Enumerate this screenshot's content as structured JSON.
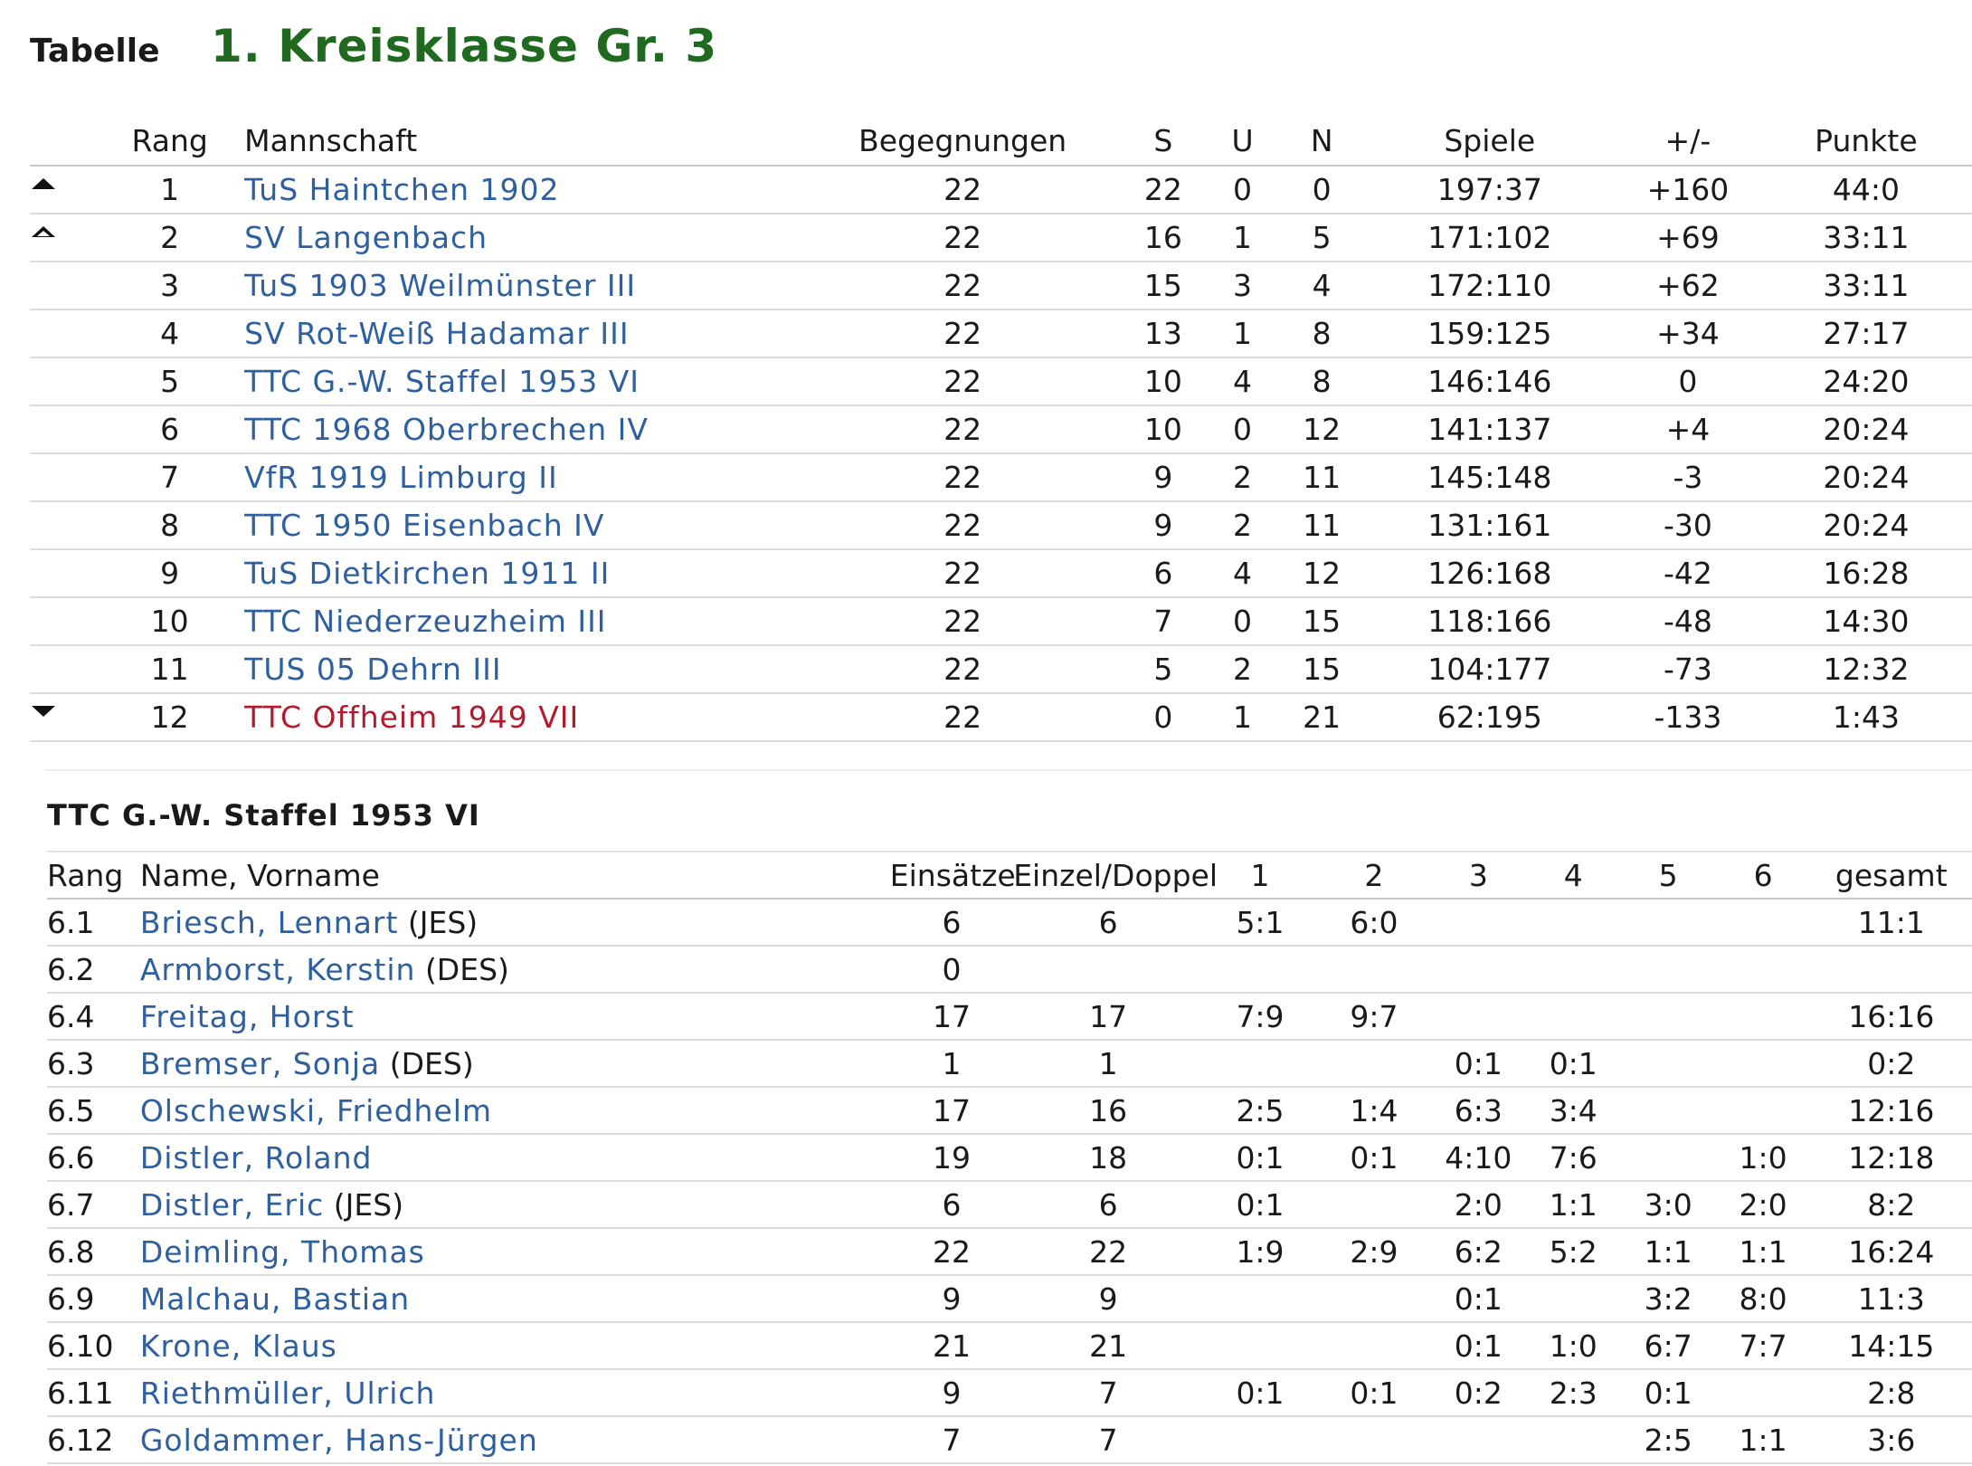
{
  "header": {
    "label": "Tabelle",
    "league": "1. Kreisklasse Gr. 3"
  },
  "standings": {
    "columns": [
      "Rang",
      "Mannschaft",
      "Begegnungen",
      "S",
      "U",
      "N",
      "Spiele",
      "+/-",
      "Punkte"
    ],
    "rows": [
      {
        "marker": "up-filled",
        "rang": "1",
        "team": "TuS Haintchen 1902",
        "beg": "22",
        "s": "22",
        "u": "0",
        "n": "0",
        "spiele": "197:37",
        "diff": "+160",
        "punkte": "44:0",
        "status": "normal"
      },
      {
        "marker": "up-outline",
        "rang": "2",
        "team": "SV Langenbach",
        "beg": "22",
        "s": "16",
        "u": "1",
        "n": "5",
        "spiele": "171:102",
        "diff": "+69",
        "punkte": "33:11",
        "status": "normal"
      },
      {
        "marker": "",
        "rang": "3",
        "team": "TuS 1903 Weilmünster III",
        "beg": "22",
        "s": "15",
        "u": "3",
        "n": "4",
        "spiele": "172:110",
        "diff": "+62",
        "punkte": "33:11",
        "status": "normal"
      },
      {
        "marker": "",
        "rang": "4",
        "team": "SV Rot-Weiß Hadamar III",
        "beg": "22",
        "s": "13",
        "u": "1",
        "n": "8",
        "spiele": "159:125",
        "diff": "+34",
        "punkte": "27:17",
        "status": "normal"
      },
      {
        "marker": "",
        "rang": "5",
        "team": "TTC G.-W. Staffel 1953 VI",
        "beg": "22",
        "s": "10",
        "u": "4",
        "n": "8",
        "spiele": "146:146",
        "diff": "0",
        "punkte": "24:20",
        "status": "normal"
      },
      {
        "marker": "",
        "rang": "6",
        "team": "TTC 1968 Oberbrechen IV",
        "beg": "22",
        "s": "10",
        "u": "0",
        "n": "12",
        "spiele": "141:137",
        "diff": "+4",
        "punkte": "20:24",
        "status": "normal"
      },
      {
        "marker": "",
        "rang": "7",
        "team": "VfR 1919 Limburg II",
        "beg": "22",
        "s": "9",
        "u": "2",
        "n": "11",
        "spiele": "145:148",
        "diff": "-3",
        "punkte": "20:24",
        "status": "normal"
      },
      {
        "marker": "",
        "rang": "8",
        "team": "TTC 1950 Eisenbach IV",
        "beg": "22",
        "s": "9",
        "u": "2",
        "n": "11",
        "spiele": "131:161",
        "diff": "-30",
        "punkte": "20:24",
        "status": "normal"
      },
      {
        "marker": "",
        "rang": "9",
        "team": "TuS Dietkirchen 1911 II",
        "beg": "22",
        "s": "6",
        "u": "4",
        "n": "12",
        "spiele": "126:168",
        "diff": "-42",
        "punkte": "16:28",
        "status": "normal"
      },
      {
        "marker": "",
        "rang": "10",
        "team": "TTC Niederzeuzheim III",
        "beg": "22",
        "s": "7",
        "u": "0",
        "n": "15",
        "spiele": "118:166",
        "diff": "-48",
        "punkte": "14:30",
        "status": "normal"
      },
      {
        "marker": "",
        "rang": "11",
        "team": "TUS 05 Dehrn III",
        "beg": "22",
        "s": "5",
        "u": "2",
        "n": "15",
        "spiele": "104:177",
        "diff": "-73",
        "punkte": "12:32",
        "status": "normal"
      },
      {
        "marker": "down-filled",
        "rang": "12",
        "team": "TTC Offheim 1949 VII",
        "beg": "22",
        "s": "0",
        "u": "1",
        "n": "21",
        "spiele": "62:195",
        "diff": "-133",
        "punkte": "1:43",
        "status": "relegation"
      }
    ]
  },
  "team_section": {
    "title": "TTC G.-W. Staffel 1953 VI",
    "columns": [
      "Rang",
      "Name, Vorname",
      "Einsätze",
      "Einzel/Doppel",
      "1",
      "2",
      "3",
      "4",
      "5",
      "6",
      "gesamt"
    ],
    "players": [
      {
        "rang": "6.1",
        "name": "Briesch, Lennart",
        "tag": "(JES)",
        "eins": "6",
        "ed": "6",
        "p1": "5:1",
        "p2": "6:0",
        "p3": "",
        "p4": "",
        "p5": "",
        "p6": "",
        "ges": "11:1"
      },
      {
        "rang": "6.2",
        "name": "Armborst, Kerstin",
        "tag": "(DES)",
        "eins": "0",
        "ed": "",
        "p1": "",
        "p2": "",
        "p3": "",
        "p4": "",
        "p5": "",
        "p6": "",
        "ges": ""
      },
      {
        "rang": "6.4",
        "name": "Freitag, Horst",
        "tag": "",
        "eins": "17",
        "ed": "17",
        "p1": "7:9",
        "p2": "9:7",
        "p3": "",
        "p4": "",
        "p5": "",
        "p6": "",
        "ges": "16:16"
      },
      {
        "rang": "6.3",
        "name": "Bremser, Sonja",
        "tag": "(DES)",
        "eins": "1",
        "ed": "1",
        "p1": "",
        "p2": "",
        "p3": "0:1",
        "p4": "0:1",
        "p5": "",
        "p6": "",
        "ges": "0:2"
      },
      {
        "rang": "6.5",
        "name": "Olschewski, Friedhelm",
        "tag": "",
        "eins": "17",
        "ed": "16",
        "p1": "2:5",
        "p2": "1:4",
        "p3": "6:3",
        "p4": "3:4",
        "p5": "",
        "p6": "",
        "ges": "12:16"
      },
      {
        "rang": "6.6",
        "name": "Distler, Roland",
        "tag": "",
        "eins": "19",
        "ed": "18",
        "p1": "0:1",
        "p2": "0:1",
        "p3": "4:10",
        "p4": "7:6",
        "p5": "",
        "p6": "1:0",
        "ges": "12:18"
      },
      {
        "rang": "6.7",
        "name": "Distler, Eric",
        "tag": "(JES)",
        "eins": "6",
        "ed": "6",
        "p1": "0:1",
        "p2": "",
        "p3": "2:0",
        "p4": "1:1",
        "p5": "3:0",
        "p6": "2:0",
        "ges": "8:2"
      },
      {
        "rang": "6.8",
        "name": "Deimling, Thomas",
        "tag": "",
        "eins": "22",
        "ed": "22",
        "p1": "1:9",
        "p2": "2:9",
        "p3": "6:2",
        "p4": "5:2",
        "p5": "1:1",
        "p6": "1:1",
        "ges": "16:24"
      },
      {
        "rang": "6.9",
        "name": "Malchau, Bastian",
        "tag": "",
        "eins": "9",
        "ed": "9",
        "p1": "",
        "p2": "",
        "p3": "0:1",
        "p4": "",
        "p5": "3:2",
        "p6": "8:0",
        "ges": "11:3"
      },
      {
        "rang": "6.10",
        "name": "Krone, Klaus",
        "tag": "",
        "eins": "21",
        "ed": "21",
        "p1": "",
        "p2": "",
        "p3": "0:1",
        "p4": "1:0",
        "p5": "6:7",
        "p6": "7:7",
        "ges": "14:15"
      },
      {
        "rang": "6.11",
        "name": "Riethmüller, Ulrich",
        "tag": "",
        "eins": "9",
        "ed": "7",
        "p1": "0:1",
        "p2": "0:1",
        "p3": "0:2",
        "p4": "2:3",
        "p5": "0:1",
        "p6": "",
        "ges": "2:8"
      },
      {
        "rang": "6.12",
        "name": "Goldammer, Hans-Jürgen",
        "tag": "",
        "eins": "7",
        "ed": "7",
        "p1": "",
        "p2": "",
        "p3": "",
        "p4": "",
        "p5": "2:5",
        "p6": "1:1",
        "ges": "3:6"
      }
    ]
  },
  "colors": {
    "league_title": "#1f6a1f",
    "link": "#2e5f9e",
    "relegation": "#b01c2e"
  }
}
